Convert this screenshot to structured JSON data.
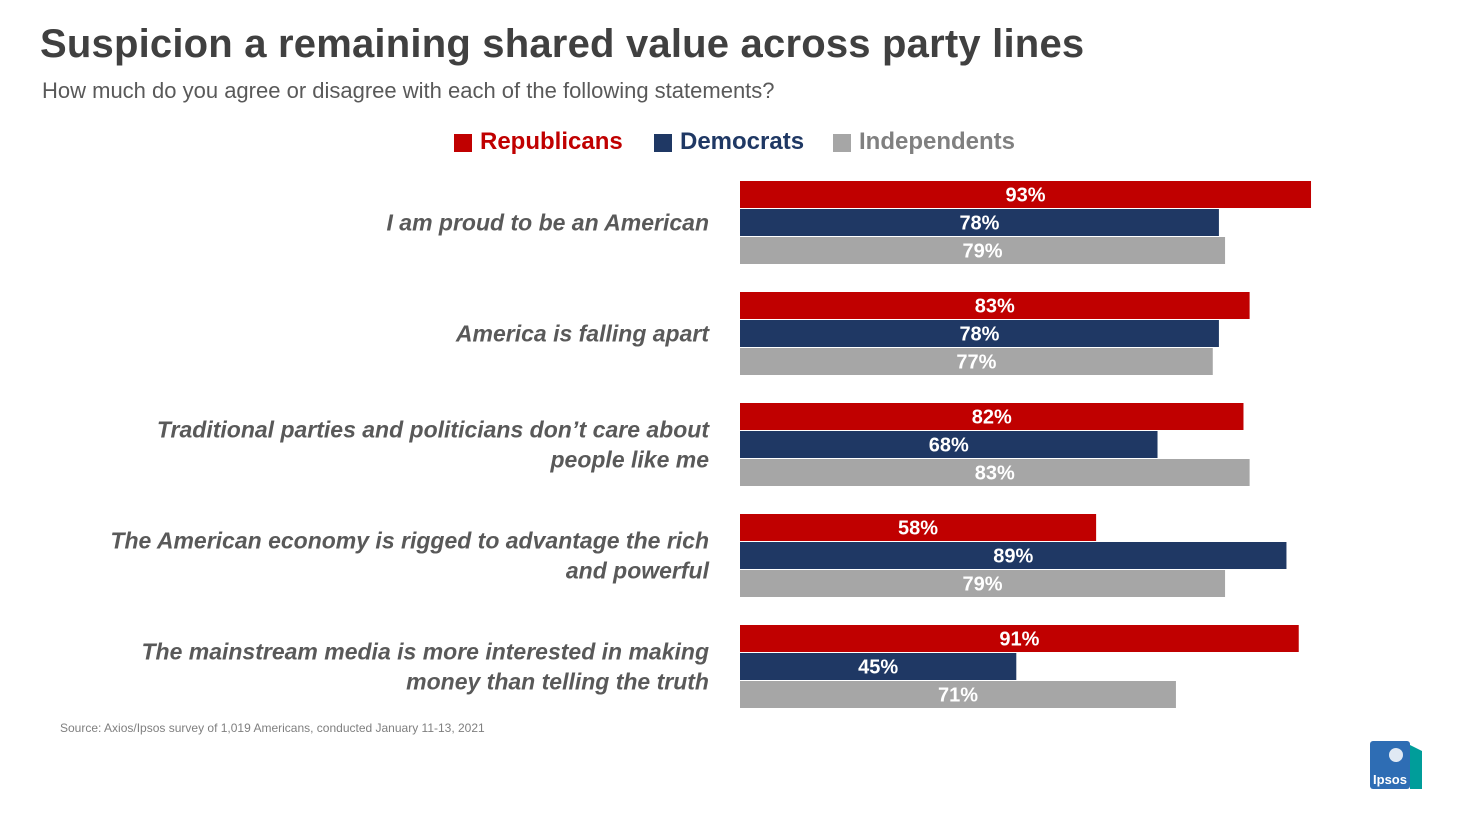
{
  "title": "Suspicion a remaining shared value across party lines",
  "subtitle": "How much do you agree or disagree with each of the following statements?",
  "source": "Source: Axios/Ipsos survey of 1,019 Americans, conducted January 11-13, 2021",
  "logo": {
    "text": "Ipsos"
  },
  "colors": {
    "republicans": "#c00000",
    "democrats": "#1f3864",
    "independents": "#a6a6a6",
    "legend_independents_text": "#808080",
    "logo_blue": "#2e6db4",
    "logo_teal": "#009d9a"
  },
  "chart_data": {
    "type": "bar",
    "orientation": "horizontal",
    "title": "Suspicion a remaining shared value across party lines",
    "xlim": [
      0,
      100
    ],
    "unit": "%",
    "legend_position": "top-center",
    "categories": [
      [
        "I am proud to be an American"
      ],
      [
        "America is falling apart"
      ],
      [
        "Traditional parties and politicians don’t care about",
        "people like me"
      ],
      [
        "The American economy is rigged to advantage the rich",
        "and powerful"
      ],
      [
        "The mainstream media is more interested in making",
        "money than telling the truth"
      ]
    ],
    "series": [
      {
        "name": "Republicans",
        "values": [
          93,
          83,
          82,
          58,
          91
        ]
      },
      {
        "name": "Democrats",
        "values": [
          78,
          78,
          68,
          89,
          45
        ]
      },
      {
        "name": "Independents",
        "values": [
          79,
          77,
          83,
          79,
          71
        ]
      }
    ]
  }
}
